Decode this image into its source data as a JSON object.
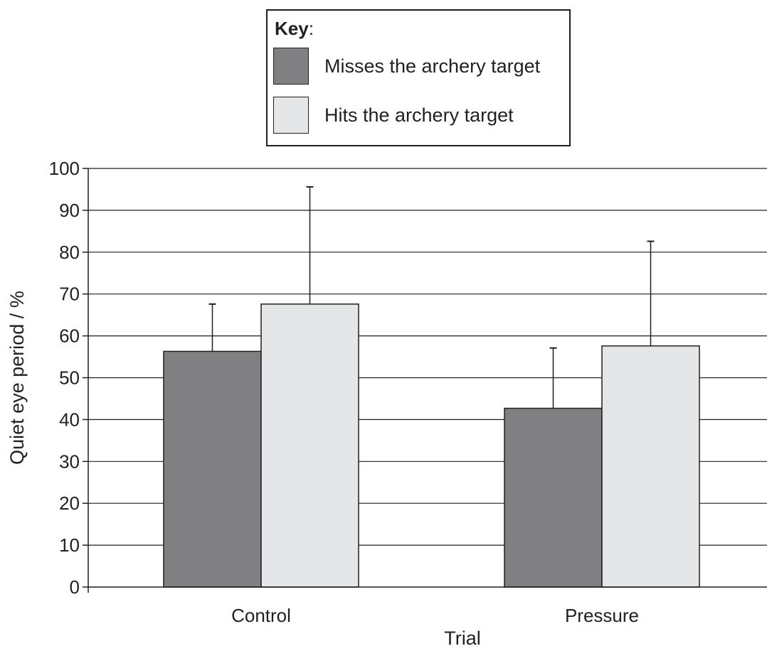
{
  "legend": {
    "title": "Key",
    "title_suffix": ":",
    "items": [
      {
        "label": "Misses the archery target",
        "color": "#808083"
      },
      {
        "label": "Hits the archery target",
        "color": "#e5e6e7"
      }
    ]
  },
  "chart_data": {
    "type": "bar",
    "title": "",
    "xlabel": "Trial",
    "ylabel": "Quiet eye period / %",
    "categories": [
      "Control",
      "Pressure"
    ],
    "series": [
      {
        "name": "Misses the archery target",
        "values": [
          56.3,
          42.7
        ],
        "error_upper": [
          67.6,
          57.1
        ],
        "color": "#808083"
      },
      {
        "name": "Hits the archery target",
        "values": [
          67.6,
          57.6
        ],
        "error_upper": [
          95.6,
          82.6
        ],
        "color": "#e5e6e7"
      }
    ],
    "ylim": [
      0,
      100
    ],
    "yticks": [
      0,
      10,
      20,
      30,
      40,
      50,
      60,
      70,
      80,
      90,
      100
    ],
    "grid": "horizontal",
    "legend_position": "top-center"
  }
}
